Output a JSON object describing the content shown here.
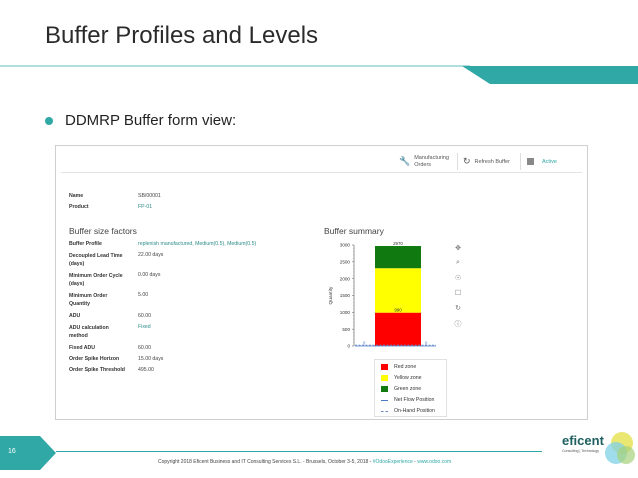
{
  "slide": {
    "title": "Buffer Profiles and Levels",
    "bullet": "DDMRP Buffer form view:",
    "page_number": "16",
    "copyright_pre": "Copyright 2018 Eficent Business and IT Consulting Services S.L.  -  Brussels, October 3-5, 2018  -  ",
    "copyright_tag": "#OdooExperience",
    "copyright_mid": "  -  ",
    "copyright_url": "www.odoo.com",
    "logo_text": "eficent",
    "logo_sub": "Consulting | Technology",
    "colors": {
      "accent": "#2fa8a6"
    }
  },
  "toolbar": {
    "mo_label_1": "Manufacturing",
    "mo_label_2": "Orders",
    "refresh_label": "Refresh Buffer",
    "active_label": "Active",
    "icons": {
      "mo": "wrench-icon",
      "refresh": "refresh-icon",
      "active": "archive-icon"
    }
  },
  "form": {
    "name_label": "Name",
    "name_value": "SB/00001",
    "product_label": "Product",
    "product_value": "FP-01",
    "factors_title": "Buffer size factors",
    "summary_title": "Buffer summary",
    "fields": {
      "profile_label": "Buffer Profile",
      "profile_value": "replenish manufactured, Medium(0.5), Medium(0.5)",
      "dlt_label_1": "Decoupled Lead Time",
      "dlt_label_2": "(days)",
      "dlt_value": "22.00 days",
      "moc_label_1": "Minimum Order Cycle",
      "moc_label_2": "(days)",
      "moc_value": "0.00 days",
      "moq_label_1": "Minimum Order",
      "moq_label_2": "Quantity",
      "moq_value": "5.00",
      "adu_label": "ADU",
      "adu_value": "60.00",
      "adu_method_label_1": "ADU calculation",
      "adu_method_label_2": "method",
      "adu_method_value": "Fixed",
      "fixed_adu_label": "Fixed ADU",
      "fixed_adu_value": "60.00",
      "osh_label": "Order Spike Horizon",
      "osh_value": "15.00 days",
      "ost_label": "Order Spike Threshold",
      "ost_value": "495.00"
    }
  },
  "chart_data": {
    "type": "bar",
    "stacked": true,
    "ylabel": "Quantity",
    "ylim": [
      0,
      3000
    ],
    "yticks": [
      "0",
      "500",
      "1000",
      "1500",
      "2000",
      "2500",
      "3000"
    ],
    "series": [
      {
        "name": "Red zone",
        "value": 990,
        "color": "#ff0000"
      },
      {
        "name": "Yellow zone",
        "value": 1320,
        "color": "#ffff00"
      },
      {
        "name": "Green zone",
        "value": 660,
        "color": "#107a10"
      }
    ],
    "top_label": "2970",
    "red_label": "990",
    "lines": [
      {
        "name": "Net Flow Position",
        "value": 0,
        "style": "solid",
        "color": "#4a7ac6",
        "label": "0"
      },
      {
        "name": "On-Hand Position",
        "value": 0,
        "style": "dashed",
        "color": "#6a8cc8",
        "label": "0"
      }
    ],
    "grid": false,
    "legend_position": "bottom"
  },
  "chart_tools": [
    "move-icon",
    "zoom-icon",
    "lasso-icon",
    "save-icon",
    "reset-icon",
    "help-icon"
  ]
}
